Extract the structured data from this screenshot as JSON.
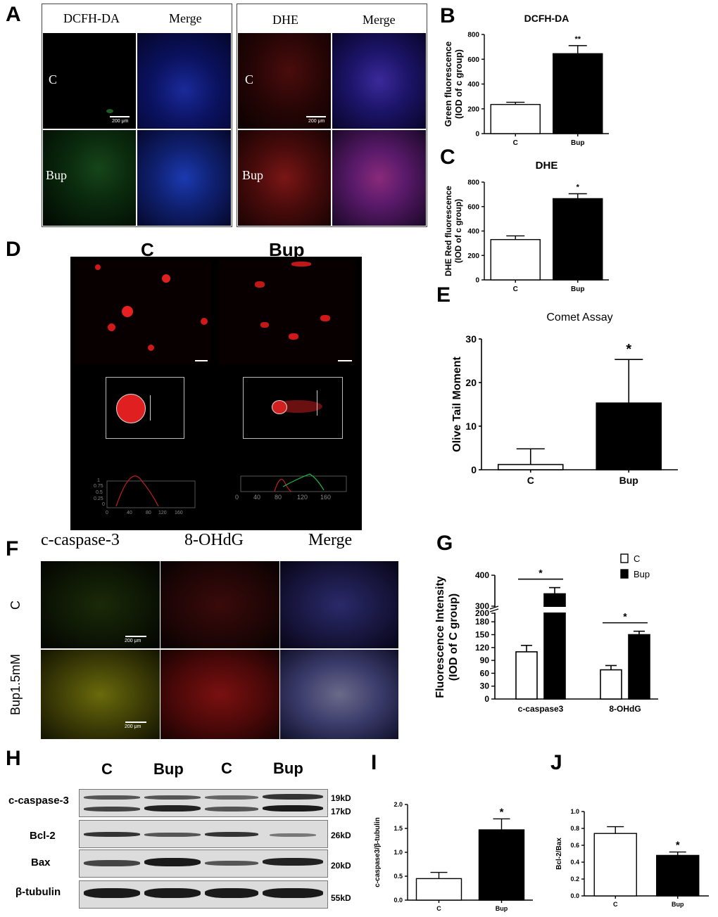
{
  "panels": {
    "A": "A",
    "B": "B",
    "C": "C",
    "D": "D",
    "E": "E",
    "F": "F",
    "G": "G",
    "H": "H",
    "I": "I",
    "J": "J"
  },
  "panelA": {
    "left": {
      "col1": "DCFH-DA",
      "col2": "Merge",
      "row1": "C",
      "row2": "Bup",
      "scale": "200 μm"
    },
    "right": {
      "col1": "DHE",
      "col2": "Merge",
      "row1": "C",
      "row2": "Bup",
      "scale": "200 μm"
    }
  },
  "panelD": {
    "col1": "C",
    "col2": "Bup",
    "profile_ticks_y": [
      "1",
      "0.75",
      "0.5",
      "0.25",
      "0"
    ],
    "profile_ticks_x": [
      "0",
      "40",
      "80",
      "120",
      "160"
    ]
  },
  "panelF": {
    "col1": "c-caspase-3",
    "col2": "8-OHdG",
    "col3": "Merge",
    "row1": "C",
    "row2": "Bup1.5mM",
    "scale": "200 μm"
  },
  "panelH": {
    "lanes": [
      "C",
      "Bup",
      "C",
      "Bup"
    ],
    "rows": [
      {
        "label": "c-caspase-3",
        "kd": [
          "19kD",
          "17kD"
        ]
      },
      {
        "label": "Bcl-2",
        "kd": [
          "26kD"
        ]
      },
      {
        "label": "Bax",
        "kd": [
          "20kD"
        ]
      },
      {
        "label": "β-tubulin",
        "kd": [
          "55kD"
        ]
      }
    ]
  },
  "colors": {
    "bar_c": "#ffffff",
    "bar_bup": "#000000",
    "dcfh_green": "#3fa34a",
    "dhe_red": "#c8282a",
    "dapi_blue": "#2a3cc8"
  },
  "chart_data": [
    {
      "id": "B",
      "type": "bar",
      "title": "DCFH-DA",
      "categories": [
        "C",
        "Bup"
      ],
      "values": [
        235,
        645
      ],
      "errors": [
        18,
        65
      ],
      "ylabel": "Green fluorescence (IOD of c group)",
      "ylim": [
        0,
        800
      ],
      "yticks": [
        0,
        200,
        400,
        600,
        800
      ],
      "sig": [
        "",
        "**"
      ]
    },
    {
      "id": "C",
      "type": "bar",
      "title": "DHE",
      "categories": [
        "C",
        "Bup"
      ],
      "values": [
        330,
        665
      ],
      "errors": [
        30,
        40
      ],
      "ylabel": "DHE Red fluorescence (IOD of c group)",
      "ylim": [
        0,
        800
      ],
      "yticks": [
        0,
        200,
        400,
        600,
        800
      ],
      "sig": [
        "",
        "*"
      ]
    },
    {
      "id": "E",
      "type": "bar",
      "title": "Comet Assay",
      "categories": [
        "C",
        "Bup"
      ],
      "values": [
        1.2,
        15.3
      ],
      "errors": [
        3.6,
        10
      ],
      "ylabel": "Olive Tail Moment",
      "ylim": [
        0,
        30
      ],
      "yticks": [
        0,
        10,
        20,
        30
      ],
      "sig": [
        "",
        "*"
      ]
    },
    {
      "id": "G",
      "type": "bar",
      "categories": [
        "c-caspase3",
        "8-OHdG"
      ],
      "series": [
        {
          "name": "C",
          "values": [
            110,
            68
          ],
          "errors": [
            15,
            10
          ]
        },
        {
          "name": "Bup",
          "values": [
            340,
            150
          ],
          "errors": [
            20,
            8
          ]
        }
      ],
      "ylabel": "Fluorescence Intensity (IOD of C group)",
      "ylim": [
        0,
        400
      ],
      "axis_break": [
        200,
        300
      ],
      "yticks": [
        0,
        30,
        60,
        90,
        120,
        150,
        180,
        200,
        300,
        400
      ],
      "sig": [
        "*",
        "*"
      ],
      "legend": "top-right"
    },
    {
      "id": "I",
      "type": "bar",
      "categories": [
        "C",
        "Bup"
      ],
      "values": [
        0.45,
        1.47
      ],
      "errors": [
        0.13,
        0.23
      ],
      "ylabel": "c-caspase3/β-tubulin",
      "ylim": [
        0,
        2.0
      ],
      "yticks": [
        "0.0",
        "0.5",
        "1.0",
        "1.5",
        "2.0"
      ],
      "sig": [
        "",
        "*"
      ]
    },
    {
      "id": "J",
      "type": "bar",
      "categories": [
        "C",
        "Bup"
      ],
      "values": [
        0.74,
        0.48
      ],
      "errors": [
        0.08,
        0.04
      ],
      "ylabel": "Bcl-2/Bax",
      "ylim": [
        0,
        1.0
      ],
      "yticks": [
        "0.0",
        "0.2",
        "0.4",
        "0.6",
        "0.8",
        "1.0"
      ],
      "sig": [
        "",
        "*"
      ]
    }
  ]
}
